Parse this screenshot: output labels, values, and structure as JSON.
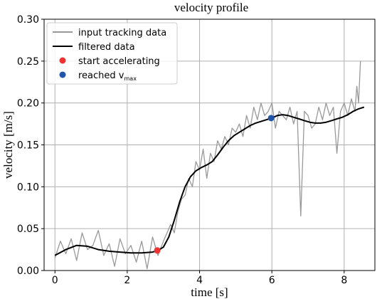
{
  "chart_data": {
    "type": "line",
    "title": "velocity profile",
    "xlabel": "time [s]",
    "ylabel": "velocity [m/s]",
    "xlim": [
      -0.3,
      8.85
    ],
    "ylim": [
      0.0,
      0.3
    ],
    "xticks": [
      0,
      2,
      4,
      6,
      8
    ],
    "xtick_labels": [
      "0",
      "2",
      "4",
      "6",
      "8"
    ],
    "yticks": [
      0.0,
      0.05,
      0.1,
      0.15,
      0.2,
      0.25,
      0.3
    ],
    "ytick_labels": [
      "0.00",
      "0.05",
      "0.10",
      "0.15",
      "0.20",
      "0.25",
      "0.30"
    ],
    "grid": true,
    "legend_position": "top-left",
    "colors": {
      "raw": "#999999",
      "filtered": "#000000",
      "start": "#ee3333",
      "vmax": "#2255aa",
      "grid": "#b0b0b0"
    },
    "series": [
      {
        "name": "input tracking data",
        "style": "line",
        "x": [
          0.0,
          0.15,
          0.3,
          0.45,
          0.6,
          0.75,
          0.9,
          1.05,
          1.2,
          1.35,
          1.5,
          1.65,
          1.8,
          1.95,
          2.1,
          2.25,
          2.4,
          2.55,
          2.7,
          2.85,
          3.0,
          3.1,
          3.2,
          3.3,
          3.4,
          3.5,
          3.6,
          3.7,
          3.8,
          3.9,
          4.0,
          4.1,
          4.2,
          4.3,
          4.4,
          4.5,
          4.6,
          4.7,
          4.8,
          4.9,
          5.0,
          5.1,
          5.2,
          5.3,
          5.4,
          5.5,
          5.6,
          5.7,
          5.8,
          5.9,
          6.0,
          6.1,
          6.2,
          6.3,
          6.4,
          6.5,
          6.6,
          6.7,
          6.8,
          6.9,
          7.0,
          7.1,
          7.2,
          7.3,
          7.4,
          7.5,
          7.6,
          7.7,
          7.8,
          7.9,
          8.0,
          8.1,
          8.2,
          8.3,
          8.35,
          8.4,
          8.45
        ],
        "y": [
          0.015,
          0.035,
          0.02,
          0.038,
          0.012,
          0.045,
          0.025,
          0.03,
          0.048,
          0.018,
          0.032,
          0.005,
          0.038,
          0.02,
          0.03,
          0.01,
          0.035,
          0.002,
          0.04,
          0.018,
          0.035,
          0.045,
          0.055,
          0.045,
          0.07,
          0.085,
          0.09,
          0.11,
          0.1,
          0.13,
          0.12,
          0.145,
          0.11,
          0.14,
          0.13,
          0.155,
          0.145,
          0.16,
          0.15,
          0.17,
          0.165,
          0.175,
          0.16,
          0.185,
          0.17,
          0.195,
          0.18,
          0.2,
          0.185,
          0.19,
          0.2,
          0.17,
          0.19,
          0.185,
          0.18,
          0.195,
          0.175,
          0.19,
          0.065,
          0.19,
          0.185,
          0.17,
          0.175,
          0.195,
          0.18,
          0.2,
          0.185,
          0.195,
          0.14,
          0.19,
          0.2,
          0.185,
          0.205,
          0.19,
          0.22,
          0.2,
          0.25
        ]
      },
      {
        "name": "filtered data",
        "style": "line",
        "x": [
          0.0,
          0.3,
          0.6,
          0.9,
          1.2,
          1.5,
          1.8,
          2.1,
          2.4,
          2.7,
          2.85,
          3.0,
          3.15,
          3.3,
          3.45,
          3.6,
          3.75,
          3.9,
          4.05,
          4.2,
          4.35,
          4.5,
          4.65,
          4.8,
          4.95,
          5.1,
          5.25,
          5.4,
          5.55,
          5.7,
          5.85,
          6.0,
          6.15,
          6.3,
          6.45,
          6.6,
          6.75,
          6.9,
          7.05,
          7.2,
          7.35,
          7.5,
          7.65,
          7.8,
          7.95,
          8.1,
          8.25,
          8.4,
          8.55
        ],
        "y": [
          0.018,
          0.025,
          0.03,
          0.029,
          0.025,
          0.023,
          0.022,
          0.021,
          0.021,
          0.022,
          0.024,
          0.028,
          0.04,
          0.06,
          0.082,
          0.1,
          0.112,
          0.119,
          0.123,
          0.126,
          0.13,
          0.138,
          0.147,
          0.155,
          0.161,
          0.165,
          0.169,
          0.173,
          0.176,
          0.178,
          0.18,
          0.182,
          0.185,
          0.186,
          0.185,
          0.183,
          0.181,
          0.179,
          0.177,
          0.176,
          0.176,
          0.177,
          0.179,
          0.181,
          0.183,
          0.186,
          0.19,
          0.193,
          0.195
        ]
      },
      {
        "name": "start accelerating",
        "style": "point",
        "x": [
          2.83
        ],
        "y": [
          0.024
        ]
      },
      {
        "name": "reached v",
        "name_subscript": "max",
        "style": "point",
        "x": [
          5.98
        ],
        "y": [
          0.182
        ]
      }
    ]
  }
}
